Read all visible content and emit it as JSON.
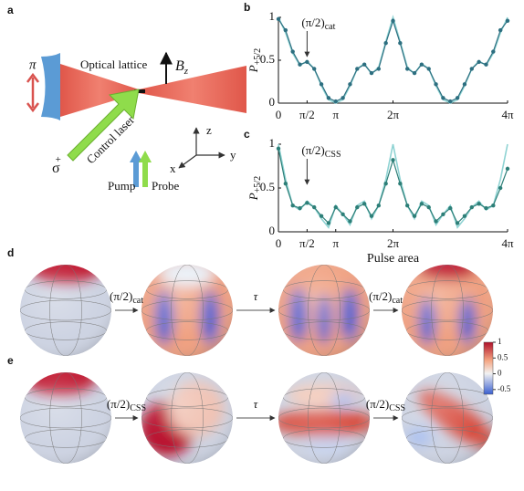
{
  "diagram": {
    "label": "a",
    "pi": "π",
    "lattice": "Optical lattice",
    "field": "B",
    "field_sub": "z",
    "polarization": "σ",
    "polarization_sup": "+",
    "control": "Control laser",
    "pump": "Pump",
    "probe": "Probe",
    "axis_z": "z",
    "axis_x": "x",
    "axis_y": "y"
  },
  "chart_data": [
    {
      "type": "line",
      "label": "b",
      "ylabel": "P",
      "ylabel_sub": "+5/2",
      "annotation": "(π/2)",
      "annotation_sub": "cat",
      "x": [
        0,
        0.125,
        0.25,
        0.375,
        0.5,
        0.625,
        0.75,
        0.875,
        1,
        1.125,
        1.25,
        1.375,
        1.5,
        1.625,
        1.75,
        1.875,
        2,
        2.125,
        2.25,
        2.375,
        2.5,
        2.625,
        2.75,
        2.875,
        3,
        3.125,
        3.25,
        3.375,
        3.5,
        3.625,
        3.75,
        3.875,
        4
      ],
      "xlim": [
        0,
        4
      ],
      "ylim": [
        0,
        1
      ],
      "xticks": [
        0,
        {
          "value": 0.5,
          "label": "π/2"
        },
        {
          "value": 1,
          "label": "π"
        },
        {
          "value": 2,
          "label": "2π"
        },
        {
          "value": 4,
          "label": "4π"
        }
      ],
      "yticks": [
        0,
        0.5,
        1
      ],
      "series": [
        {
          "color": "#8fd3d3",
          "values": [
            1,
            0.82,
            0.58,
            0.44,
            0.49,
            0.4,
            0.2,
            0.04,
            0,
            0.04,
            0.2,
            0.4,
            0.46,
            0.34,
            0.42,
            0.72,
            1,
            0.72,
            0.42,
            0.34,
            0.46,
            0.4,
            0.2,
            0.04,
            0,
            0.04,
            0.2,
            0.4,
            0.49,
            0.44,
            0.58,
            0.82,
            1
          ]
        },
        {
          "color": "#2d6f80",
          "marker": true,
          "values": [
            0.98,
            0.85,
            0.6,
            0.45,
            0.48,
            0.4,
            0.22,
            0.06,
            0.02,
            0.06,
            0.22,
            0.4,
            0.45,
            0.35,
            0.4,
            0.7,
            0.96,
            0.7,
            0.4,
            0.35,
            0.45,
            0.4,
            0.22,
            0.06,
            0.02,
            0.06,
            0.22,
            0.4,
            0.48,
            0.45,
            0.6,
            0.85,
            0.96
          ]
        }
      ]
    },
    {
      "type": "line",
      "label": "c",
      "ylabel": "P",
      "ylabel_sub": "+5/2",
      "xlabel": "Pulse area",
      "annotation": "(π/2)",
      "annotation_sub": "CSS",
      "x": [
        0,
        0.125,
        0.25,
        0.375,
        0.5,
        0.625,
        0.75,
        0.875,
        1,
        1.125,
        1.25,
        1.375,
        1.5,
        1.625,
        1.75,
        1.875,
        2,
        2.125,
        2.25,
        2.375,
        2.5,
        2.625,
        2.75,
        2.875,
        3,
        3.125,
        3.25,
        3.375,
        3.5,
        3.625,
        3.75,
        3.875,
        4
      ],
      "xlim": [
        0,
        4
      ],
      "ylim": [
        0,
        1
      ],
      "xticks": [
        0,
        {
          "value": 0.5,
          "label": "π/2"
        },
        {
          "value": 1,
          "label": "π"
        },
        {
          "value": 2,
          "label": "2π"
        },
        {
          "value": 4,
          "label": "4π"
        }
      ],
      "yticks": [
        0,
        0.5,
        1
      ],
      "series": [
        {
          "color": "#8fd3d3",
          "values": [
            1,
            0.6,
            0.3,
            0.25,
            0.35,
            0.28,
            0.15,
            0.05,
            0.3,
            0.2,
            0.08,
            0.3,
            0.35,
            0.15,
            0.3,
            0.6,
            1,
            0.6,
            0.3,
            0.15,
            0.35,
            0.3,
            0.08,
            0.2,
            0.3,
            0.05,
            0.15,
            0.28,
            0.35,
            0.25,
            0.3,
            0.6,
            1
          ]
        },
        {
          "color": "#2d7f78",
          "marker": true,
          "values": [
            0.95,
            0.55,
            0.3,
            0.27,
            0.33,
            0.28,
            0.18,
            0.1,
            0.28,
            0.2,
            0.12,
            0.28,
            0.32,
            0.18,
            0.3,
            0.55,
            0.82,
            0.55,
            0.3,
            0.18,
            0.32,
            0.28,
            0.12,
            0.2,
            0.27,
            0.1,
            0.18,
            0.28,
            0.32,
            0.27,
            0.3,
            0.5,
            0.72
          ]
        }
      ]
    }
  ],
  "spheres": {
    "rows": [
      {
        "label": "d",
        "steps": [
          {
            "text": "(π/2)",
            "sub": "cat"
          },
          {
            "text": "τ"
          },
          {
            "text": "(π/2)",
            "sub": "cat"
          }
        ]
      },
      {
        "label": "e",
        "steps": [
          {
            "text": "(π/2)",
            "sub": "CSS"
          },
          {
            "text": "τ"
          },
          {
            "text": "(π/2)",
            "sub": "CSS"
          }
        ]
      }
    ],
    "colorbar": {
      "lim": [
        -0.65,
        1
      ],
      "ticks": [
        1,
        0.5,
        0,
        -0.5
      ]
    }
  }
}
